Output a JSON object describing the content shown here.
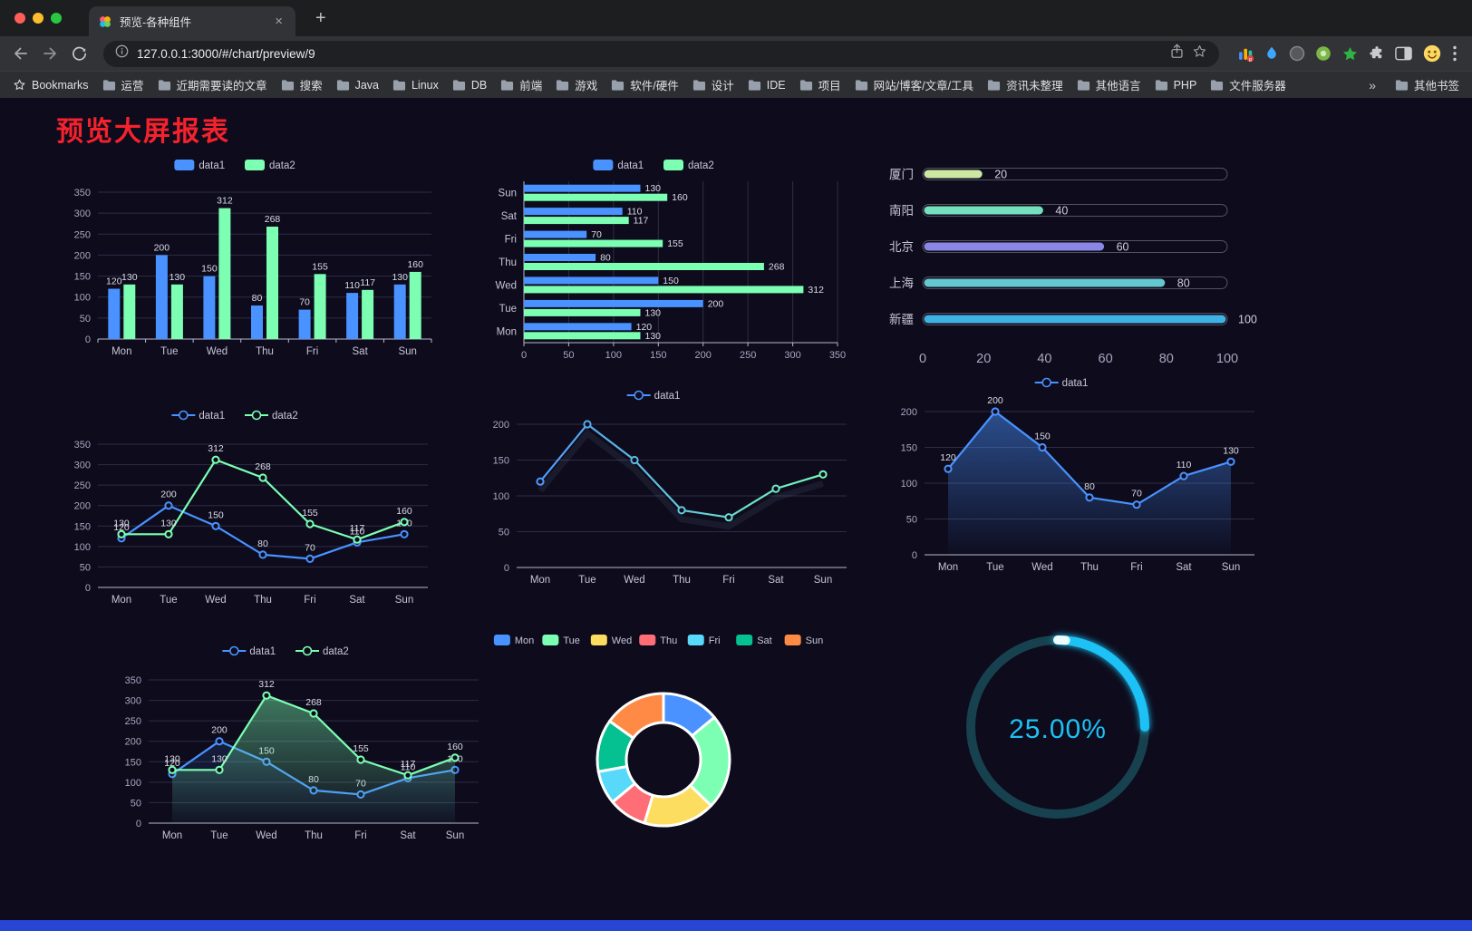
{
  "browser": {
    "tab_title": "预览-各种组件",
    "url": "127.0.0.1:3000/#/chart/preview/9",
    "bookmarks_label": "Bookmarks",
    "bookmarks": [
      "运营",
      "近期需要读的文章",
      "搜索",
      "Java",
      "Linux",
      "DB",
      "前端",
      "游戏",
      "软件/硬件",
      "设计",
      "IDE",
      "项目",
      "网站/博客/文章/工具",
      "资讯未整理",
      "其他语言",
      "PHP",
      "文件服务器"
    ],
    "overflow": "»",
    "other_bookmarks": "其他书签",
    "icons": [
      "back-arrow",
      "forward-arrow",
      "reload",
      "site-info",
      "share",
      "bookmark-star",
      "colorful-bars-extension",
      "blue-drop-extension",
      "gray-circle-extension",
      "green-circle-extension",
      "green-star-extension",
      "puzzle-extensions",
      "split-screen",
      "emoji-avatar",
      "kebab-menu",
      "folder",
      "new-tab-plus",
      "tab-close",
      "window-traffic-lights"
    ]
  },
  "page": {
    "title": "预览大屏报表",
    "title_color": "#f5222d",
    "background": "#0d0b1c",
    "bottom_bar_color": "#2945d3"
  },
  "chart_data": [
    {
      "id": "bar-grouped",
      "type": "bar",
      "legend": [
        "data1",
        "data2"
      ],
      "categories": [
        "Mon",
        "Tue",
        "Wed",
        "Thu",
        "Fri",
        "Sat",
        "Sun"
      ],
      "series": [
        {
          "name": "data1",
          "color": "#4992ff",
          "values": [
            120,
            200,
            150,
            80,
            70,
            110,
            130
          ]
        },
        {
          "name": "data2",
          "color": "#7cffb2",
          "values": [
            130,
            130,
            312,
            268,
            155,
            117,
            160
          ]
        }
      ],
      "ylim": [
        0,
        350
      ],
      "ytick": 50,
      "labels": true
    },
    {
      "id": "bar-horizontal",
      "type": "hbar",
      "legend": [
        "data1",
        "data2"
      ],
      "categories": [
        "Mon",
        "Tue",
        "Wed",
        "Thu",
        "Fri",
        "Sat",
        "Sun"
      ],
      "series": [
        {
          "name": "data1",
          "color": "#4992ff",
          "values": [
            120,
            200,
            150,
            80,
            70,
            110,
            130
          ]
        },
        {
          "name": "data2",
          "color": "#7cffb2",
          "values": [
            130,
            130,
            312,
            268,
            155,
            117,
            160
          ]
        }
      ],
      "xlim": [
        0,
        350
      ],
      "xtick": 50,
      "labels": true
    },
    {
      "id": "city-progress",
      "type": "progress",
      "max": 100,
      "xticks": [
        0,
        20,
        40,
        60,
        80,
        100
      ],
      "rows": [
        {
          "label": "厦门",
          "value": 20,
          "color": "#cbe7a2"
        },
        {
          "label": "南阳",
          "value": 40,
          "color": "#74e0bd"
        },
        {
          "label": "北京",
          "value": 60,
          "color": "#8a86e3"
        },
        {
          "label": "上海",
          "value": 80,
          "color": "#64c8cf"
        },
        {
          "label": "新疆",
          "value": 100,
          "color": "#3fb2e3"
        }
      ]
    },
    {
      "id": "line-dual",
      "type": "line",
      "legend": [
        "data1",
        "data2"
      ],
      "categories": [
        "Mon",
        "Tue",
        "Wed",
        "Thu",
        "Fri",
        "Sat",
        "Sun"
      ],
      "series": [
        {
          "name": "data1",
          "color": "#4992ff",
          "values": [
            120,
            200,
            150,
            80,
            70,
            110,
            130
          ]
        },
        {
          "name": "data2",
          "color": "#7cffb2",
          "values": [
            130,
            130,
            312,
            268,
            155,
            117,
            160
          ]
        }
      ],
      "ylim": [
        0,
        350
      ],
      "ytick": 50,
      "labels": true
    },
    {
      "id": "line-gradient",
      "type": "line",
      "legend": [
        "data1"
      ],
      "categories": [
        "Mon",
        "Tue",
        "Wed",
        "Thu",
        "Fri",
        "Sat",
        "Sun"
      ],
      "series": [
        {
          "name": "data1",
          "gradient": [
            "#4992ff",
            "#7cffb2"
          ],
          "color": "#4992ff",
          "values": [
            120,
            200,
            150,
            80,
            70,
            110,
            130
          ]
        }
      ],
      "ylim": [
        0,
        200
      ],
      "ytick": 50,
      "labels": false,
      "shadow": true
    },
    {
      "id": "line-area",
      "type": "line",
      "legend": [
        "data1"
      ],
      "categories": [
        "Mon",
        "Tue",
        "Wed",
        "Thu",
        "Fri",
        "Sat",
        "Sun"
      ],
      "series": [
        {
          "name": "data1",
          "color": "#4992ff",
          "area": 0.5,
          "values": [
            120,
            200,
            150,
            80,
            70,
            110,
            130
          ]
        }
      ],
      "ylim": [
        0,
        200
      ],
      "ytick": 50,
      "labels": true
    },
    {
      "id": "line-dual-area",
      "type": "line",
      "legend": [
        "data1",
        "data2"
      ],
      "categories": [
        "Mon",
        "Tue",
        "Wed",
        "Thu",
        "Fri",
        "Sat",
        "Sun"
      ],
      "series": [
        {
          "name": "data1",
          "color": "#4992ff",
          "area": 0.15,
          "values": [
            120,
            200,
            150,
            80,
            70,
            110,
            130
          ]
        },
        {
          "name": "data2",
          "color": "#7cffb2",
          "area": 0.45,
          "values": [
            130,
            130,
            312,
            268,
            155,
            117,
            160
          ]
        }
      ],
      "ylim": [
        0,
        350
      ],
      "ytick": 50,
      "labels": true
    },
    {
      "id": "week-donut",
      "type": "donut",
      "legend": [
        "Mon",
        "Tue",
        "Wed",
        "Thu",
        "Fri",
        "Sat",
        "Sun"
      ],
      "values": [
        120,
        200,
        150,
        80,
        70,
        110,
        130
      ],
      "colors": [
        "#4992ff",
        "#7cffb2",
        "#fddd60",
        "#ff6e76",
        "#58d9f9",
        "#05c091",
        "#ff8a45"
      ]
    },
    {
      "id": "percent-gauge",
      "type": "gauge",
      "value": 25,
      "display": "25.00%",
      "color": "#1ec1f5",
      "track": "#17414e"
    }
  ]
}
